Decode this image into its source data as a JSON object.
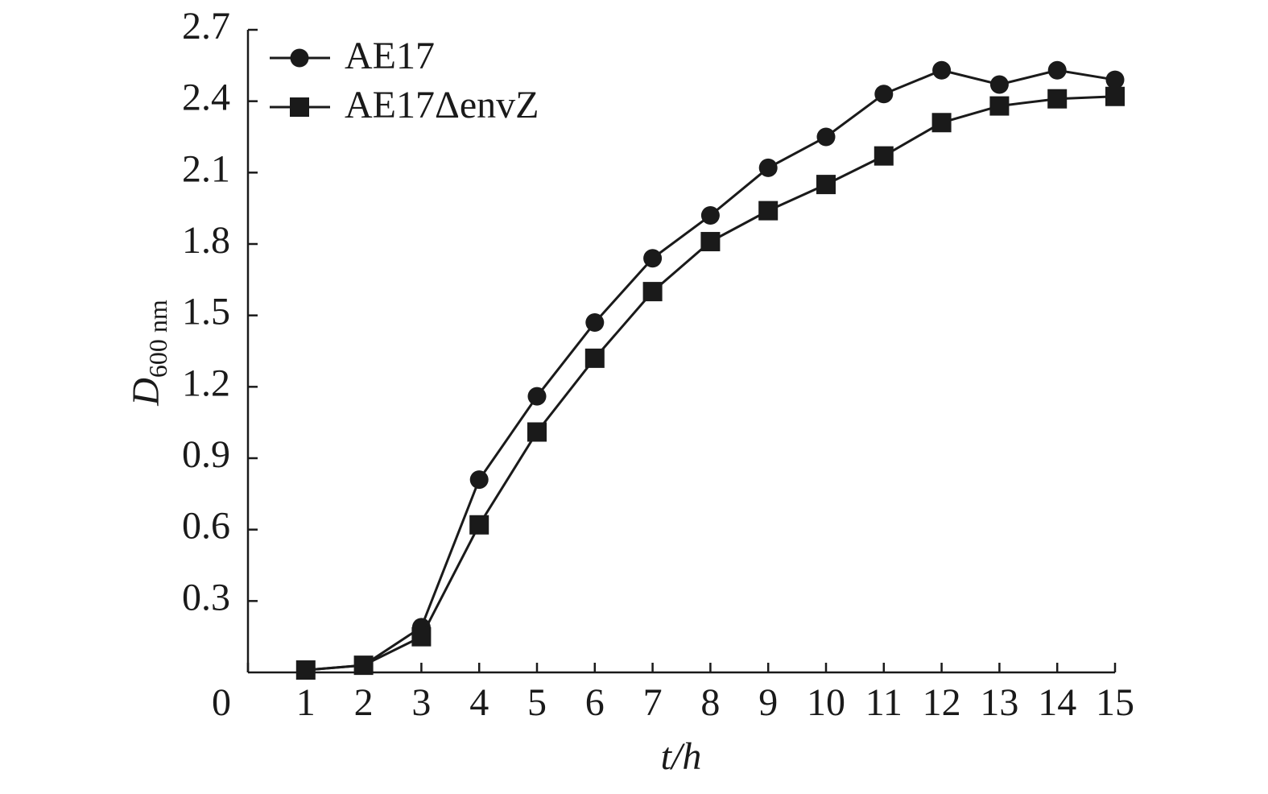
{
  "chart_data": {
    "type": "line",
    "x_label": "t/h",
    "y_label": "D",
    "y_label_subscript": "600 nm",
    "x": [
      1,
      2,
      3,
      4,
      5,
      6,
      7,
      8,
      9,
      10,
      11,
      12,
      13,
      14,
      15
    ],
    "series": [
      {
        "name": "AE17",
        "color": "#1a1a1a",
        "marker": "circle",
        "values": [
          0.01,
          0.03,
          0.19,
          0.81,
          1.16,
          1.47,
          1.74,
          1.92,
          2.12,
          2.25,
          2.43,
          2.53,
          2.47,
          2.53,
          2.49
        ]
      },
      {
        "name": "AE17ΔenvZ",
        "color": "#1a1a1a",
        "marker": "square",
        "values": [
          0.01,
          0.03,
          0.15,
          0.62,
          1.01,
          1.32,
          1.6,
          1.81,
          1.94,
          2.05,
          2.17,
          2.31,
          2.38,
          2.41,
          2.42
        ]
      }
    ],
    "xlim": [
      0,
      15
    ],
    "xticks": [
      0,
      1,
      2,
      3,
      4,
      5,
      6,
      7,
      8,
      9,
      10,
      11,
      12,
      13,
      14,
      15
    ],
    "ylim": [
      0,
      2.7
    ],
    "yticks": [
      0.3,
      0.6,
      0.9,
      1.2,
      1.5,
      1.8,
      2.1,
      2.4,
      2.7
    ],
    "grid": false,
    "legend": "upper left"
  }
}
